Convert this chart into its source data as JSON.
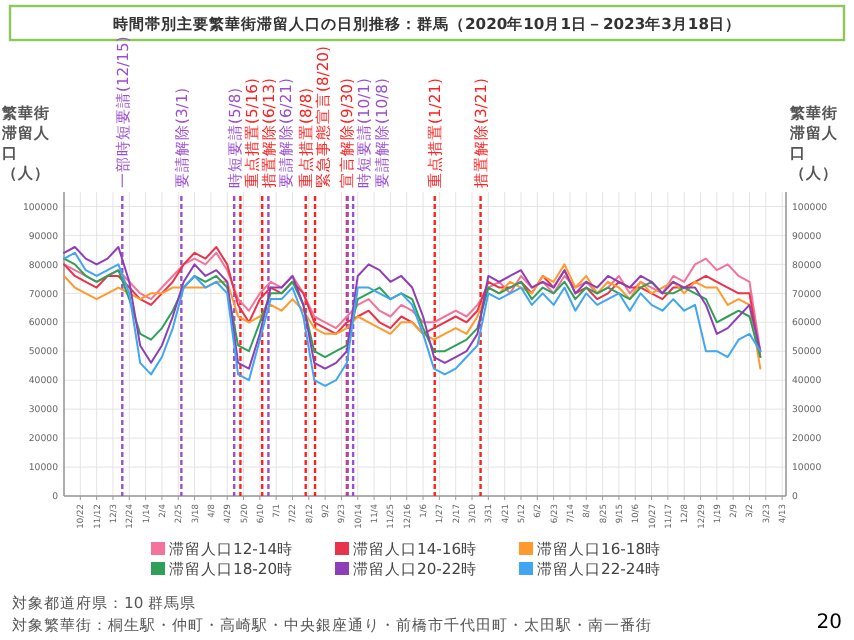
{
  "chart_data": {
    "type": "line",
    "title": "時間帯別主要繁華街滞留人口の日別推移：群馬（2020年10月1日－2023年3月18日）",
    "ylabel": "繁華街滞留人口（人）",
    "y2label": "繁華街滞留人口（人）",
    "x": [
      "2020-10-01",
      "2020-10-15",
      "2020-10-29",
      "2020-11-12",
      "2020-11-26",
      "2020-12-10",
      "2020-12-24",
      "2021-01-07",
      "2021-01-21",
      "2021-02-04",
      "2021-02-18",
      "2021-03-04",
      "2021-03-18",
      "2021-04-01",
      "2021-04-15",
      "2021-04-29",
      "2021-05-13",
      "2021-05-27",
      "2021-06-10",
      "2021-06-24",
      "2021-07-08",
      "2021-07-22",
      "2021-08-05",
      "2021-08-19",
      "2021-09-02",
      "2021-09-16",
      "2021-09-30",
      "2021-10-14",
      "2021-10-28",
      "2021-11-11",
      "2021-11-25",
      "2021-12-09",
      "2021-12-23",
      "2022-01-06",
      "2022-01-20",
      "2022-02-03",
      "2022-02-17",
      "2022-03-03",
      "2022-03-17",
      "2022-03-31",
      "2022-04-14",
      "2022-04-28",
      "2022-05-12",
      "2022-05-26",
      "2022-06-09",
      "2022-06-23",
      "2022-07-07",
      "2022-07-21",
      "2022-08-04",
      "2022-08-18",
      "2022-09-01",
      "2022-09-15",
      "2022-09-29",
      "2022-10-13",
      "2022-10-27",
      "2022-11-10",
      "2022-11-24",
      "2022-12-08",
      "2022-12-22",
      "2023-01-05",
      "2023-01-19",
      "2023-02-02",
      "2023-02-16",
      "2023-03-02",
      "2023-03-16"
    ],
    "series": [
      {
        "name": "滞留人口12-14時",
        "color": "#f4739a",
        "values": [
          80000,
          78000,
          76000,
          74000,
          76000,
          78000,
          74000,
          70000,
          68000,
          72000,
          76000,
          80000,
          82000,
          80000,
          84000,
          78000,
          68000,
          64000,
          70000,
          74000,
          72000,
          76000,
          70000,
          62000,
          60000,
          58000,
          62000,
          66000,
          68000,
          64000,
          62000,
          66000,
          64000,
          60000,
          60000,
          62000,
          64000,
          62000,
          66000,
          72000,
          74000,
          70000,
          76000,
          72000,
          74000,
          70000,
          76000,
          72000,
          74000,
          70000,
          72000,
          76000,
          70000,
          74000,
          72000,
          70000,
          76000,
          74000,
          80000,
          82000,
          78000,
          80000,
          76000,
          74000,
          50000
        ]
      },
      {
        "name": "滞留人口14-16時",
        "color": "#e8334a",
        "values": [
          80000,
          76000,
          74000,
          72000,
          76000,
          76000,
          72000,
          68000,
          66000,
          70000,
          74000,
          80000,
          84000,
          82000,
          86000,
          80000,
          66000,
          60000,
          68000,
          72000,
          70000,
          74000,
          70000,
          60000,
          58000,
          56000,
          60000,
          62000,
          64000,
          60000,
          58000,
          62000,
          60000,
          56000,
          58000,
          60000,
          62000,
          60000,
          64000,
          74000,
          72000,
          72000,
          74000,
          70000,
          76000,
          72000,
          78000,
          70000,
          72000,
          68000,
          70000,
          74000,
          72000,
          72000,
          70000,
          68000,
          72000,
          72000,
          74000,
          76000,
          74000,
          72000,
          70000,
          70000,
          48000
        ]
      },
      {
        "name": "滞留人口16-18時",
        "color": "#ff9a2e",
        "values": [
          76000,
          72000,
          70000,
          68000,
          70000,
          72000,
          70000,
          68000,
          70000,
          70000,
          72000,
          72000,
          72000,
          72000,
          74000,
          74000,
          62000,
          60000,
          62000,
          66000,
          64000,
          68000,
          64000,
          58000,
          56000,
          56000,
          58000,
          62000,
          60000,
          58000,
          56000,
          60000,
          60000,
          56000,
          54000,
          56000,
          58000,
          56000,
          62000,
          72000,
          70000,
          74000,
          72000,
          70000,
          76000,
          74000,
          80000,
          72000,
          76000,
          70000,
          74000,
          72000,
          68000,
          74000,
          70000,
          72000,
          74000,
          70000,
          74000,
          72000,
          72000,
          66000,
          68000,
          66000,
          44000
        ]
      },
      {
        "name": "滞留人口18-20時",
        "color": "#2ea05a",
        "values": [
          82000,
          80000,
          76000,
          74000,
          76000,
          78000,
          68000,
          56000,
          54000,
          58000,
          64000,
          72000,
          76000,
          74000,
          76000,
          72000,
          52000,
          50000,
          60000,
          70000,
          70000,
          74000,
          66000,
          50000,
          48000,
          50000,
          52000,
          68000,
          70000,
          72000,
          68000,
          70000,
          68000,
          58000,
          50000,
          50000,
          52000,
          54000,
          58000,
          72000,
          70000,
          72000,
          74000,
          68000,
          72000,
          70000,
          74000,
          68000,
          72000,
          70000,
          72000,
          70000,
          68000,
          72000,
          74000,
          70000,
          70000,
          72000,
          70000,
          68000,
          60000,
          62000,
          64000,
          62000,
          48000
        ]
      },
      {
        "name": "滞留人口20-22時",
        "color": "#8e3fb8",
        "values": [
          84000,
          86000,
          82000,
          80000,
          82000,
          86000,
          74000,
          52000,
          46000,
          52000,
          62000,
          74000,
          80000,
          76000,
          78000,
          74000,
          46000,
          44000,
          56000,
          72000,
          72000,
          76000,
          66000,
          46000,
          44000,
          46000,
          50000,
          76000,
          80000,
          78000,
          74000,
          76000,
          72000,
          62000,
          48000,
          46000,
          48000,
          50000,
          56000,
          76000,
          74000,
          76000,
          78000,
          72000,
          74000,
          72000,
          78000,
          70000,
          74000,
          72000,
          76000,
          74000,
          72000,
          76000,
          74000,
          70000,
          74000,
          72000,
          72000,
          66000,
          56000,
          58000,
          62000,
          66000,
          50000
        ]
      },
      {
        "name": "滞留人口22-24時",
        "color": "#42a5f0",
        "values": [
          82000,
          84000,
          78000,
          76000,
          78000,
          80000,
          70000,
          46000,
          42000,
          48000,
          58000,
          72000,
          76000,
          72000,
          74000,
          70000,
          42000,
          40000,
          54000,
          68000,
          68000,
          72000,
          62000,
          40000,
          38000,
          40000,
          46000,
          72000,
          72000,
          70000,
          68000,
          70000,
          66000,
          56000,
          44000,
          42000,
          44000,
          48000,
          52000,
          70000,
          68000,
          70000,
          72000,
          66000,
          70000,
          66000,
          72000,
          64000,
          70000,
          66000,
          68000,
          70000,
          64000,
          70000,
          66000,
          64000,
          68000,
          64000,
          66000,
          50000,
          50000,
          48000,
          54000,
          56000,
          50000
        ]
      }
    ],
    "xlim": [
      "2020-10-01",
      "2023-04-18"
    ],
    "xticks": [
      {
        "value": "2020-10-22",
        "label": "10/22"
      },
      {
        "value": "2020-11-12",
        "label": "11/12"
      },
      {
        "value": "2020-12-03",
        "label": "12/3"
      },
      {
        "value": "2020-12-24",
        "label": "12/24"
      },
      {
        "value": "2021-01-14",
        "label": "1/14"
      },
      {
        "value": "2021-02-04",
        "label": "2/4"
      },
      {
        "value": "2021-02-25",
        "label": "2/25"
      },
      {
        "value": "2021-03-18",
        "label": "3/18"
      },
      {
        "value": "2021-04-08",
        "label": "4/8"
      },
      {
        "value": "2021-04-29",
        "label": "4/29"
      },
      {
        "value": "2021-05-20",
        "label": "5/20"
      },
      {
        "value": "2021-06-10",
        "label": "6/10"
      },
      {
        "value": "2021-07-01",
        "label": "7/1"
      },
      {
        "value": "2021-07-22",
        "label": "7/22"
      },
      {
        "value": "2021-08-12",
        "label": "8/12"
      },
      {
        "value": "2021-09-02",
        "label": "9/2"
      },
      {
        "value": "2021-09-23",
        "label": "9/23"
      },
      {
        "value": "2021-10-14",
        "label": "10/14"
      },
      {
        "value": "2021-11-04",
        "label": "11/4"
      },
      {
        "value": "2021-11-25",
        "label": "11/25"
      },
      {
        "value": "2021-12-16",
        "label": "12/16"
      },
      {
        "value": "2022-01-06",
        "label": "1/6"
      },
      {
        "value": "2022-01-27",
        "label": "1/27"
      },
      {
        "value": "2022-02-17",
        "label": "2/17"
      },
      {
        "value": "2022-03-10",
        "label": "3/10"
      },
      {
        "value": "2022-03-31",
        "label": "3/31"
      },
      {
        "value": "2022-04-21",
        "label": "4/21"
      },
      {
        "value": "2022-05-12",
        "label": "5/12"
      },
      {
        "value": "2022-06-02",
        "label": "6/2"
      },
      {
        "value": "2022-06-23",
        "label": "6/23"
      },
      {
        "value": "2022-07-14",
        "label": "7/14"
      },
      {
        "value": "2022-08-04",
        "label": "8/4"
      },
      {
        "value": "2022-08-25",
        "label": "8/25"
      },
      {
        "value": "2022-09-15",
        "label": "9/15"
      },
      {
        "value": "2022-10-06",
        "label": "10/6"
      },
      {
        "value": "2022-10-27",
        "label": "10/27"
      },
      {
        "value": "2022-11-17",
        "label": "11/17"
      },
      {
        "value": "2022-12-08",
        "label": "12/8"
      },
      {
        "value": "2022-12-29",
        "label": "12/29"
      },
      {
        "value": "2023-01-19",
        "label": "1/19"
      },
      {
        "value": "2023-02-09",
        "label": "2/9"
      },
      {
        "value": "2023-03-02",
        "label": "3/2"
      },
      {
        "value": "2023-03-23",
        "label": "3/23"
      },
      {
        "value": "2023-04-13",
        "label": "4/13"
      }
    ],
    "ylim": [
      0,
      105000
    ],
    "yticks": [
      0,
      10000,
      20000,
      30000,
      40000,
      50000,
      60000,
      70000,
      80000,
      90000,
      100000
    ],
    "y2lim": [
      0,
      105000
    ],
    "y2ticks": [
      0,
      10000,
      20000,
      30000,
      40000,
      50000,
      60000,
      70000,
      80000,
      90000,
      100000
    ],
    "grid": true,
    "legend": "bottom",
    "ref_lines": [
      {
        "axis": "x",
        "value": "2020-12-15",
        "label": "一部時短要請(12/15)",
        "color": "#9b4fd0",
        "line_style": "dashed"
      },
      {
        "axis": "x",
        "value": "2021-03-01",
        "label": "要請解除(3/1)",
        "color": "#9b4fd0",
        "line_style": "dashed"
      },
      {
        "axis": "x",
        "value": "2021-05-08",
        "label": "時短要請(5/8)",
        "color": "#9b4fd0",
        "line_style": "dashed"
      },
      {
        "axis": "x",
        "value": "2021-05-16",
        "label": "重点措置(5/16)",
        "color": "#ff2020",
        "line_style": "dashed"
      },
      {
        "axis": "x",
        "value": "2021-06-13",
        "label": "措置解除(6/13)",
        "color": "#ff2020",
        "line_style": "dashed"
      },
      {
        "axis": "x",
        "value": "2021-06-21",
        "label": "要請解除(6/21)",
        "color": "#9b4fd0",
        "line_style": "dashed"
      },
      {
        "axis": "x",
        "value": "2021-08-08",
        "label": "重点措置(8/8)",
        "color": "#ff2020",
        "line_style": "dashed"
      },
      {
        "axis": "x",
        "value": "2021-08-20",
        "label": "緊急事態宣言(8/20)",
        "color": "#ff2020",
        "line_style": "dashed"
      },
      {
        "axis": "x",
        "value": "2021-09-30",
        "label": "宣言解除(9/30)",
        "color": "#ff2020",
        "line_style": "dashed"
      },
      {
        "axis": "x",
        "value": "2021-10-01",
        "label": "時短要請(10/1)",
        "color": "#9b4fd0",
        "line_style": "dashed"
      },
      {
        "axis": "x",
        "value": "2021-10-08",
        "label": "要請解除(10/8)",
        "color": "#9b4fd0",
        "line_style": "dashed"
      },
      {
        "axis": "x",
        "value": "2022-01-21",
        "label": "重点措置(1/21)",
        "color": "#ff2020",
        "line_style": "dashed"
      },
      {
        "axis": "x",
        "value": "2022-03-21",
        "label": "措置解除(3/21)",
        "color": "#ff2020",
        "line_style": "dashed"
      }
    ],
    "annotations": [
      "対象都道府県：10 群馬県",
      "対象繁華街：桐生駅・仲町・高崎駅・中央銀座通り・前橋市千代田町・太田駅・南一番街",
      "20"
    ]
  }
}
